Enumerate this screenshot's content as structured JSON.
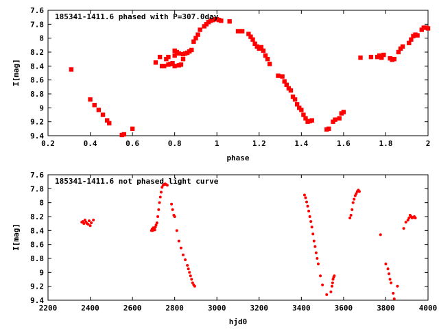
{
  "colors": {
    "points": "#ff0000",
    "axes": "#000000",
    "background": "#ffffff"
  },
  "chart_data": [
    {
      "type": "scatter",
      "title": "185341-1411.6 phased with P=307.0day",
      "xlabel": "phase",
      "ylabel": "I[mag]",
      "xlim": [
        0.2,
        2.0
      ],
      "ylim": [
        9.4,
        7.6
      ],
      "y_inverted": true,
      "grid": false,
      "xticks": [
        "0.2",
        "0.4",
        "0.6",
        "0.8",
        "1",
        "1.2",
        "1.4",
        "1.6",
        "1.8",
        "2"
      ],
      "xtick_values": [
        0.2,
        0.4,
        0.6,
        0.8,
        1.0,
        1.2,
        1.4,
        1.6,
        1.8,
        2.0
      ],
      "yticks": [
        "7.6",
        "7.8",
        "8",
        "8.2",
        "8.4",
        "8.6",
        "8.8",
        "9",
        "9.2",
        "9.4"
      ],
      "ytick_values": [
        7.6,
        7.8,
        8.0,
        8.2,
        8.4,
        8.6,
        8.8,
        9.0,
        9.2,
        9.4
      ],
      "points": [
        [
          0.31,
          8.45
        ],
        [
          0.4,
          8.88
        ],
        [
          0.42,
          8.96
        ],
        [
          0.44,
          9.03
        ],
        [
          0.46,
          9.1
        ],
        [
          0.48,
          9.18
        ],
        [
          0.49,
          9.22
        ],
        [
          0.55,
          9.39
        ],
        [
          0.56,
          9.38
        ],
        [
          0.6,
          9.3
        ],
        [
          0.71,
          8.35
        ],
        [
          0.73,
          8.27
        ],
        [
          0.74,
          8.4
        ],
        [
          0.75,
          8.4
        ],
        [
          0.76,
          8.3
        ],
        [
          0.77,
          8.27
        ],
        [
          0.77,
          8.38
        ],
        [
          0.78,
          8.37
        ],
        [
          0.79,
          8.36
        ],
        [
          0.8,
          8.4
        ],
        [
          0.8,
          8.25
        ],
        [
          0.8,
          8.18
        ],
        [
          0.81,
          8.2
        ],
        [
          0.82,
          8.39
        ],
        [
          0.82,
          8.22
        ],
        [
          0.83,
          8.38
        ],
        [
          0.84,
          8.23
        ],
        [
          0.84,
          8.3
        ],
        [
          0.85,
          8.22
        ],
        [
          0.86,
          8.21
        ],
        [
          0.87,
          8.19
        ],
        [
          0.88,
          8.17
        ],
        [
          0.89,
          8.05
        ],
        [
          0.9,
          8.0
        ],
        [
          0.91,
          7.95
        ],
        [
          0.92,
          7.88
        ],
        [
          0.94,
          7.83
        ],
        [
          0.95,
          7.8
        ],
        [
          0.96,
          7.77
        ],
        [
          0.97,
          7.75
        ],
        [
          0.98,
          7.74
        ],
        [
          0.99,
          7.73
        ],
        [
          1.0,
          7.73
        ],
        [
          1.01,
          7.74
        ],
        [
          1.02,
          7.75
        ],
        [
          1.06,
          7.76
        ],
        [
          1.1,
          7.9
        ],
        [
          1.12,
          7.9
        ],
        [
          1.15,
          7.94
        ],
        [
          1.16,
          7.98
        ],
        [
          1.17,
          8.02
        ],
        [
          1.18,
          8.08
        ],
        [
          1.19,
          8.12
        ],
        [
          1.2,
          8.15
        ],
        [
          1.21,
          8.13
        ],
        [
          1.22,
          8.18
        ],
        [
          1.23,
          8.25
        ],
        [
          1.24,
          8.3
        ],
        [
          1.25,
          8.37
        ],
        [
          1.29,
          8.54
        ],
        [
          1.31,
          8.55
        ],
        [
          1.32,
          8.62
        ],
        [
          1.33,
          8.67
        ],
        [
          1.34,
          8.72
        ],
        [
          1.35,
          8.75
        ],
        [
          1.36,
          8.84
        ],
        [
          1.37,
          8.88
        ],
        [
          1.38,
          8.95
        ],
        [
          1.39,
          9.0
        ],
        [
          1.4,
          9.03
        ],
        [
          1.41,
          9.1
        ],
        [
          1.42,
          9.15
        ],
        [
          1.43,
          9.2
        ],
        [
          1.44,
          9.19
        ],
        [
          1.45,
          9.18
        ],
        [
          1.52,
          9.31
        ],
        [
          1.53,
          9.3
        ],
        [
          1.55,
          9.2
        ],
        [
          1.56,
          9.17
        ],
        [
          1.58,
          9.15
        ],
        [
          1.59,
          9.08
        ],
        [
          1.6,
          9.06
        ],
        [
          1.68,
          8.28
        ],
        [
          1.73,
          8.27
        ],
        [
          1.76,
          8.27
        ],
        [
          1.77,
          8.25
        ],
        [
          1.78,
          8.28
        ],
        [
          1.79,
          8.24
        ],
        [
          1.82,
          8.29
        ],
        [
          1.83,
          8.31
        ],
        [
          1.84,
          8.3
        ],
        [
          1.86,
          8.2
        ],
        [
          1.87,
          8.15
        ],
        [
          1.88,
          8.12
        ],
        [
          1.91,
          8.07
        ],
        [
          1.92,
          8.02
        ],
        [
          1.93,
          7.97
        ],
        [
          1.94,
          7.95
        ],
        [
          1.95,
          7.96
        ],
        [
          1.97,
          7.88
        ],
        [
          1.98,
          7.85
        ],
        [
          1.99,
          7.85
        ],
        [
          2.0,
          7.86
        ]
      ]
    },
    {
      "type": "scatter",
      "title": "185341-1411.6 not phased light curve",
      "xlabel": "hjd0",
      "ylabel": "I[mag]",
      "xlim": [
        2200,
        4000
      ],
      "ylim": [
        9.4,
        7.6
      ],
      "y_inverted": true,
      "grid": false,
      "xticks": [
        "2200",
        "2400",
        "2600",
        "2800",
        "3000",
        "3200",
        "3400",
        "3600",
        "3800",
        "4000"
      ],
      "xtick_values": [
        2200,
        2400,
        2600,
        2800,
        3000,
        3200,
        3400,
        3600,
        3800,
        4000
      ],
      "yticks": [
        "7.6",
        "7.8",
        "8",
        "8.2",
        "8.4",
        "8.6",
        "8.8",
        "9",
        "9.2",
        "9.4"
      ],
      "ytick_values": [
        7.6,
        7.8,
        8.0,
        8.2,
        8.4,
        8.6,
        8.8,
        9.0,
        9.2,
        9.4
      ],
      "points": [
        [
          2360,
          8.28
        ],
        [
          2365,
          8.27
        ],
        [
          2370,
          8.3
        ],
        [
          2375,
          8.25
        ],
        [
          2380,
          8.28
        ],
        [
          2385,
          8.3
        ],
        [
          2390,
          8.31
        ],
        [
          2395,
          8.26
        ],
        [
          2400,
          8.33
        ],
        [
          2405,
          8.29
        ],
        [
          2415,
          8.25
        ],
        [
          2690,
          8.4
        ],
        [
          2693,
          8.38
        ],
        [
          2696,
          8.4
        ],
        [
          2699,
          8.36
        ],
        [
          2703,
          8.37
        ],
        [
          2706,
          8.39
        ],
        [
          2709,
          8.35
        ],
        [
          2712,
          8.32
        ],
        [
          2716,
          8.29
        ],
        [
          2720,
          8.2
        ],
        [
          2724,
          8.1
        ],
        [
          2728,
          8.0
        ],
        [
          2732,
          7.92
        ],
        [
          2736,
          7.85
        ],
        [
          2740,
          7.78
        ],
        [
          2745,
          7.75
        ],
        [
          2750,
          7.74
        ],
        [
          2755,
          7.73
        ],
        [
          2760,
          7.74
        ],
        [
          2765,
          7.75
        ],
        [
          2785,
          8.02
        ],
        [
          2790,
          8.1
        ],
        [
          2796,
          8.18
        ],
        [
          2800,
          8.2
        ],
        [
          2810,
          8.4
        ],
        [
          2820,
          8.55
        ],
        [
          2830,
          8.65
        ],
        [
          2840,
          8.75
        ],
        [
          2850,
          8.82
        ],
        [
          2860,
          8.9
        ],
        [
          2865,
          8.95
        ],
        [
          2870,
          9.0
        ],
        [
          2875,
          9.05
        ],
        [
          2880,
          9.1
        ],
        [
          2885,
          9.15
        ],
        [
          2890,
          9.18
        ],
        [
          2895,
          9.2
        ],
        [
          3415,
          7.89
        ],
        [
          3420,
          7.93
        ],
        [
          3425,
          7.99
        ],
        [
          3430,
          8.05
        ],
        [
          3435,
          8.12
        ],
        [
          3440,
          8.2
        ],
        [
          3445,
          8.27
        ],
        [
          3450,
          8.35
        ],
        [
          3455,
          8.45
        ],
        [
          3460,
          8.55
        ],
        [
          3465,
          8.63
        ],
        [
          3470,
          8.72
        ],
        [
          3475,
          8.8
        ],
        [
          3480,
          8.88
        ],
        [
          3490,
          9.05
        ],
        [
          3500,
          9.18
        ],
        [
          3520,
          9.32
        ],
        [
          3540,
          9.28
        ],
        [
          3545,
          9.2
        ],
        [
          3548,
          9.15
        ],
        [
          3550,
          9.1
        ],
        [
          3553,
          9.07
        ],
        [
          3556,
          9.05
        ],
        [
          3630,
          8.22
        ],
        [
          3635,
          8.18
        ],
        [
          3640,
          8.1
        ],
        [
          3645,
          8.0
        ],
        [
          3650,
          7.95
        ],
        [
          3655,
          7.9
        ],
        [
          3660,
          7.87
        ],
        [
          3665,
          7.84
        ],
        [
          3670,
          7.82
        ],
        [
          3675,
          7.84
        ],
        [
          3775,
          8.46
        ],
        [
          3800,
          8.88
        ],
        [
          3810,
          8.95
        ],
        [
          3815,
          9.02
        ],
        [
          3820,
          9.1
        ],
        [
          3825,
          9.15
        ],
        [
          3835,
          9.3
        ],
        [
          3840,
          9.38
        ],
        [
          3855,
          9.2
        ],
        [
          3885,
          8.37
        ],
        [
          3895,
          8.28
        ],
        [
          3905,
          8.25
        ],
        [
          3910,
          8.22
        ],
        [
          3915,
          8.18
        ],
        [
          3920,
          8.2
        ],
        [
          3925,
          8.22
        ],
        [
          3930,
          8.21
        ],
        [
          3935,
          8.2
        ],
        [
          3940,
          8.22
        ]
      ]
    }
  ]
}
